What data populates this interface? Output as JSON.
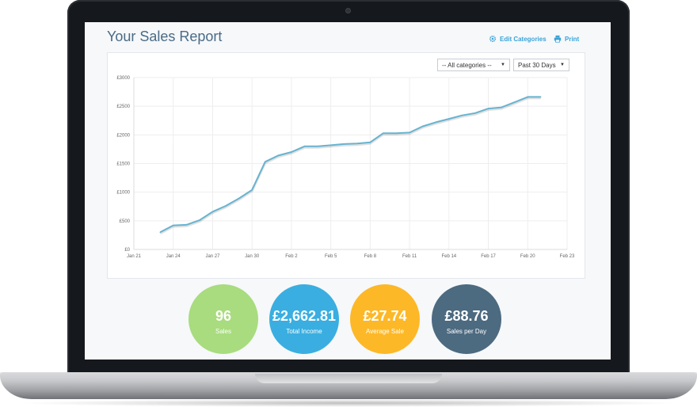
{
  "header": {
    "title": "Your Sales Report",
    "edit_categories_label": "Edit Categories",
    "print_label": "Print"
  },
  "filters": {
    "category_selected": "-- All categories --",
    "range_selected": "Past 30 Days"
  },
  "stats": [
    {
      "value": "96",
      "label": "Sales",
      "color": "#a8dc7e"
    },
    {
      "value": "£2,662.81",
      "label": "Total Income",
      "color": "#3aaee0"
    },
    {
      "value": "£27.74",
      "label": "Average Sale",
      "color": "#fdb827"
    },
    {
      "value": "£88.76",
      "label": "Sales per Day",
      "color": "#4c6a80"
    }
  ],
  "colors": {
    "accent": "#3aa3d8",
    "line": "#67b3d0",
    "title": "#4a6b85"
  },
  "icons": {
    "edit": "gear-icon",
    "print": "printer-icon"
  },
  "chart_data": {
    "type": "line",
    "title": "",
    "xlabel": "",
    "ylabel": "",
    "x_tick_labels": [
      "Jan 21",
      "Jan 24",
      "Jan 27",
      "Jan 30",
      "Feb 2",
      "Feb 5",
      "Feb 8",
      "Feb 11",
      "Feb 14",
      "Feb 17",
      "Feb 20",
      "Feb 23"
    ],
    "y_tick_labels": [
      "£0",
      "£500",
      "£1000",
      "£1500",
      "£2000",
      "£2500",
      "£3000"
    ],
    "ylim": [
      0,
      3000
    ],
    "xlim_days": [
      0,
      33
    ],
    "grid": true,
    "series": [
      {
        "x": [
          2,
          3,
          4,
          5,
          6,
          7,
          8,
          9,
          10,
          11,
          12,
          13,
          14,
          15,
          16,
          17,
          18,
          19,
          20,
          21,
          22,
          23,
          24,
          25,
          26,
          27,
          28,
          29,
          30,
          31
        ],
        "values": [
          300,
          420,
          430,
          510,
          660,
          760,
          890,
          1040,
          1530,
          1640,
          1700,
          1800,
          1800,
          1820,
          1840,
          1850,
          1870,
          2030,
          2030,
          2040,
          2150,
          2220,
          2280,
          2340,
          2380,
          2460,
          2480,
          2570,
          2663,
          2663
        ]
      }
    ]
  }
}
